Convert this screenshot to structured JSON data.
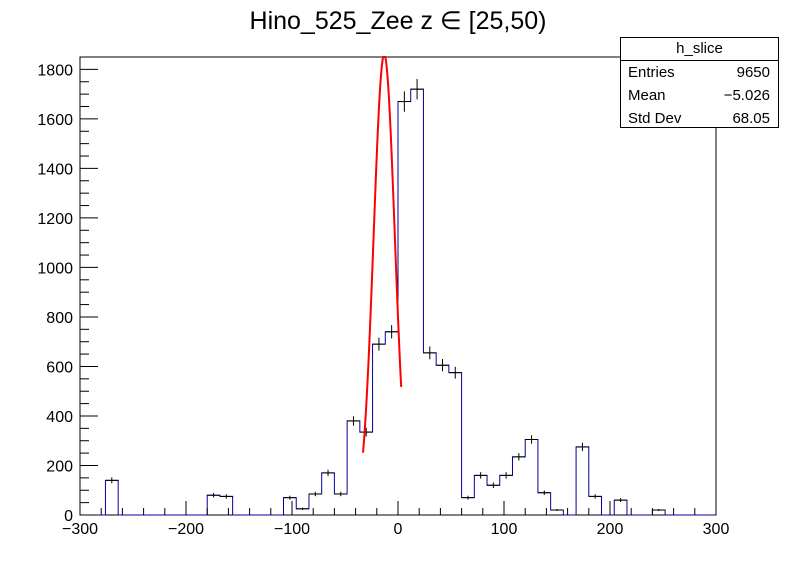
{
  "chart_data": {
    "type": "bar",
    "title": "Hino_525_Zee z  ∈ [25,50)",
    "xlim": [
      -300,
      300
    ],
    "ylim": [
      0,
      1850
    ],
    "xticks": [
      -300,
      -200,
      -100,
      0,
      100,
      200,
      300
    ],
    "yticks": [
      0,
      200,
      400,
      600,
      800,
      1000,
      1200,
      1400,
      1600,
      1800
    ],
    "bin_width": 12,
    "bin_start": -300,
    "values": [
      0,
      0,
      140,
      0,
      0,
      0,
      0,
      0,
      0,
      0,
      80,
      75,
      0,
      0,
      0,
      0,
      70,
      25,
      85,
      170,
      85,
      380,
      335,
      690,
      740,
      1670,
      1720,
      655,
      605,
      575,
      70,
      160,
      120,
      160,
      235,
      305,
      90,
      20,
      0,
      275,
      75,
      0,
      60,
      0,
      0,
      20,
      0,
      0,
      0,
      0
    ],
    "errors": [
      0,
      0,
      12,
      0,
      0,
      0,
      0,
      0,
      0,
      0,
      9,
      9,
      0,
      0,
      0,
      0,
      8,
      5,
      9,
      13,
      9,
      19,
      18,
      26,
      27,
      41,
      41,
      26,
      25,
      24,
      8,
      13,
      11,
      13,
      15,
      17,
      9,
      4,
      0,
      17,
      9,
      0,
      8,
      0,
      0,
      4,
      0,
      0,
      0,
      0
    ],
    "fit": {
      "function": "gaus",
      "mean": -13,
      "sigma": 10,
      "amplitude": 1860,
      "range": [
        -33,
        3
      ]
    },
    "line_color": "#000099",
    "fit_color": "#ff0000",
    "stats": {
      "name": "h_slice",
      "entries_label": "Entries",
      "entries": "9650",
      "mean_label": "Mean",
      "mean": "−5.026",
      "std_label": "Std Dev",
      "std": "68.05"
    }
  }
}
